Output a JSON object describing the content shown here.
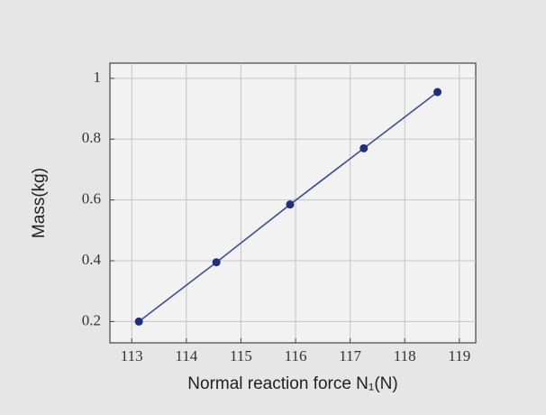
{
  "chart_data": {
    "type": "line",
    "x_label": "Normal reaction force N₁(N)",
    "y_label": "Mass(kg)",
    "x": [
      113.13,
      114.55,
      115.9,
      117.25,
      118.6
    ],
    "series": [
      {
        "color": "#3b4f9e",
        "values": [
          0.2,
          0.395,
          0.585,
          0.77,
          0.955
        ]
      }
    ],
    "xlim": [
      112.6,
      119.3
    ],
    "xticks": [
      113,
      114,
      115,
      116,
      117,
      118,
      119
    ],
    "ylim": [
      0.13,
      1.05
    ],
    "yticks": [
      0.2,
      0.4,
      0.6,
      0.8,
      1
    ],
    "grid": true,
    "markers": true
  }
}
